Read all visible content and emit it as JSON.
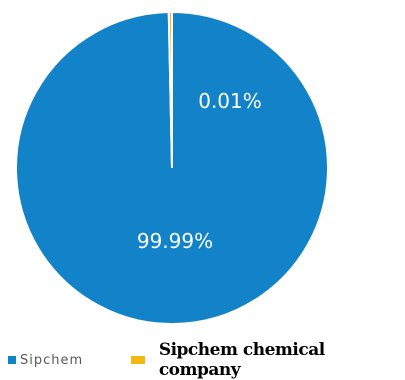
{
  "chart_data": {
    "type": "pie",
    "series": [
      {
        "name": "Sipchem",
        "value": 99.99,
        "label": "99.99%",
        "color": "#1283c8"
      },
      {
        "name": "Sipchem chemical company",
        "value": 0.01,
        "label": "0.01%",
        "color": "#f2b712"
      }
    ],
    "legend_position": "bottom-left"
  }
}
